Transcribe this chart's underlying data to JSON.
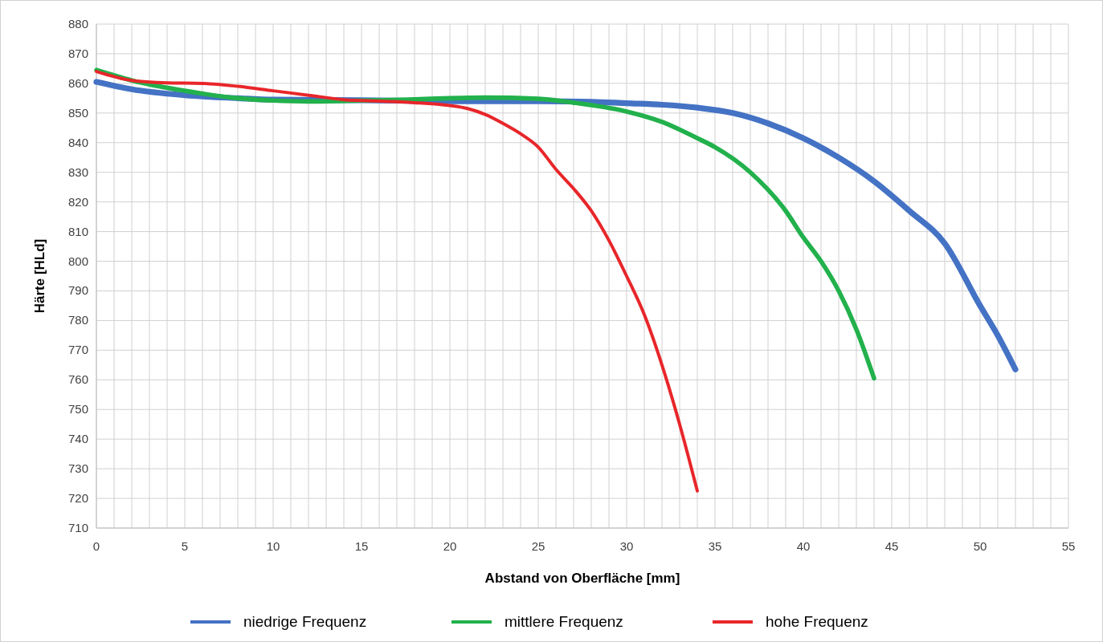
{
  "chart_data": {
    "type": "line",
    "xlabel": "Abstand von Oberfläche [mm]",
    "ylabel": "Härte [HLd]",
    "xlim": [
      0,
      55
    ],
    "xticks": [
      0,
      {
        "value": 1,
        "label": null
      },
      {
        "value": 2,
        "label": null
      },
      {
        "value": 3,
        "label": null
      },
      {
        "value": 4,
        "label": null
      },
      5,
      {
        "value": 6,
        "label": null
      },
      {
        "value": 7,
        "label": null
      },
      {
        "value": 8,
        "label": null
      },
      {
        "value": 9,
        "label": null
      },
      10,
      {
        "value": 11,
        "label": null
      },
      {
        "value": 12,
        "label": null
      },
      {
        "value": 13,
        "label": null
      },
      {
        "value": 14,
        "label": null
      },
      15,
      {
        "value": 16,
        "label": null
      },
      {
        "value": 17,
        "label": null
      },
      {
        "value": 18,
        "label": null
      },
      {
        "value": 19,
        "label": null
      },
      20,
      {
        "value": 21,
        "label": null
      },
      {
        "value": 22,
        "label": null
      },
      {
        "value": 23,
        "label": null
      },
      {
        "value": 24,
        "label": null
      },
      25,
      {
        "value": 26,
        "label": null
      },
      {
        "value": 27,
        "label": null
      },
      {
        "value": 28,
        "label": null
      },
      {
        "value": 29,
        "label": null
      },
      30,
      {
        "value": 31,
        "label": null
      },
      {
        "value": 32,
        "label": null
      },
      {
        "value": 33,
        "label": null
      },
      {
        "value": 34,
        "label": null
      },
      35,
      {
        "value": 36,
        "label": null
      },
      {
        "value": 37,
        "label": null
      },
      {
        "value": 38,
        "label": null
      },
      {
        "value": 39,
        "label": null
      },
      40,
      {
        "value": 41,
        "label": null
      },
      {
        "value": 42,
        "label": null
      },
      {
        "value": 43,
        "label": null
      },
      {
        "value": 44,
        "label": null
      },
      45,
      {
        "value": 46,
        "label": null
      },
      {
        "value": 47,
        "label": null
      },
      {
        "value": 48,
        "label": null
      },
      {
        "value": 49,
        "label": null
      },
      50,
      {
        "value": 51,
        "label": null
      },
      {
        "value": 52,
        "label": null
      },
      {
        "value": 53,
        "label": null
      },
      {
        "value": 54,
        "label": null
      },
      55
    ],
    "ylim": [
      710,
      880
    ],
    "yticks": [
      710,
      720,
      730,
      740,
      750,
      760,
      770,
      780,
      790,
      800,
      810,
      820,
      830,
      840,
      850,
      860,
      870,
      880
    ],
    "grid": true,
    "legend": "bottom",
    "marker": "none",
    "line_style": "solid",
    "series": [
      {
        "name": "niedrige Frequenz",
        "color": "#4472c4",
        "x": [
          0,
          2,
          5,
          8,
          10,
          15,
          20,
          25,
          28,
          30,
          32,
          34,
          36,
          38,
          40,
          42,
          44,
          46,
          48,
          50,
          51,
          52
        ],
        "values": [
          860.5,
          858,
          856,
          855,
          854.5,
          854.3,
          854,
          854,
          853.8,
          853.3,
          852.8,
          851.8,
          850,
          846.5,
          841.5,
          835,
          827,
          817,
          806,
          785,
          775,
          763.5
        ]
      },
      {
        "name": "mittlere Frequenz",
        "color": "#22b14c",
        "x": [
          0,
          2,
          5,
          8,
          10,
          12,
          15,
          18,
          20,
          22,
          25,
          27,
          30,
          32,
          34,
          35,
          37,
          39,
          40,
          41,
          42,
          43,
          44
        ],
        "values": [
          864.5,
          861,
          857.5,
          855,
          854.2,
          853.9,
          854.2,
          854.6,
          855,
          855.2,
          854.8,
          853.5,
          850.5,
          847,
          841.5,
          838.5,
          830,
          817,
          808,
          800,
          790,
          777,
          760.5
        ]
      },
      {
        "name": "hohe Frequenz",
        "color": "#e8262a",
        "x": [
          0,
          2,
          4,
          6,
          8,
          10,
          12,
          14,
          16,
          18,
          20,
          21,
          22,
          23,
          24,
          25,
          26,
          27,
          28,
          29,
          30,
          31,
          32,
          33,
          34
        ],
        "values": [
          864,
          861,
          860.2,
          860,
          859,
          857.5,
          856,
          854.5,
          854,
          853.5,
          852.5,
          851.5,
          849.5,
          846.5,
          843,
          838.5,
          831,
          824.5,
          817,
          807,
          795,
          782,
          765,
          745,
          722.5
        ]
      }
    ]
  }
}
